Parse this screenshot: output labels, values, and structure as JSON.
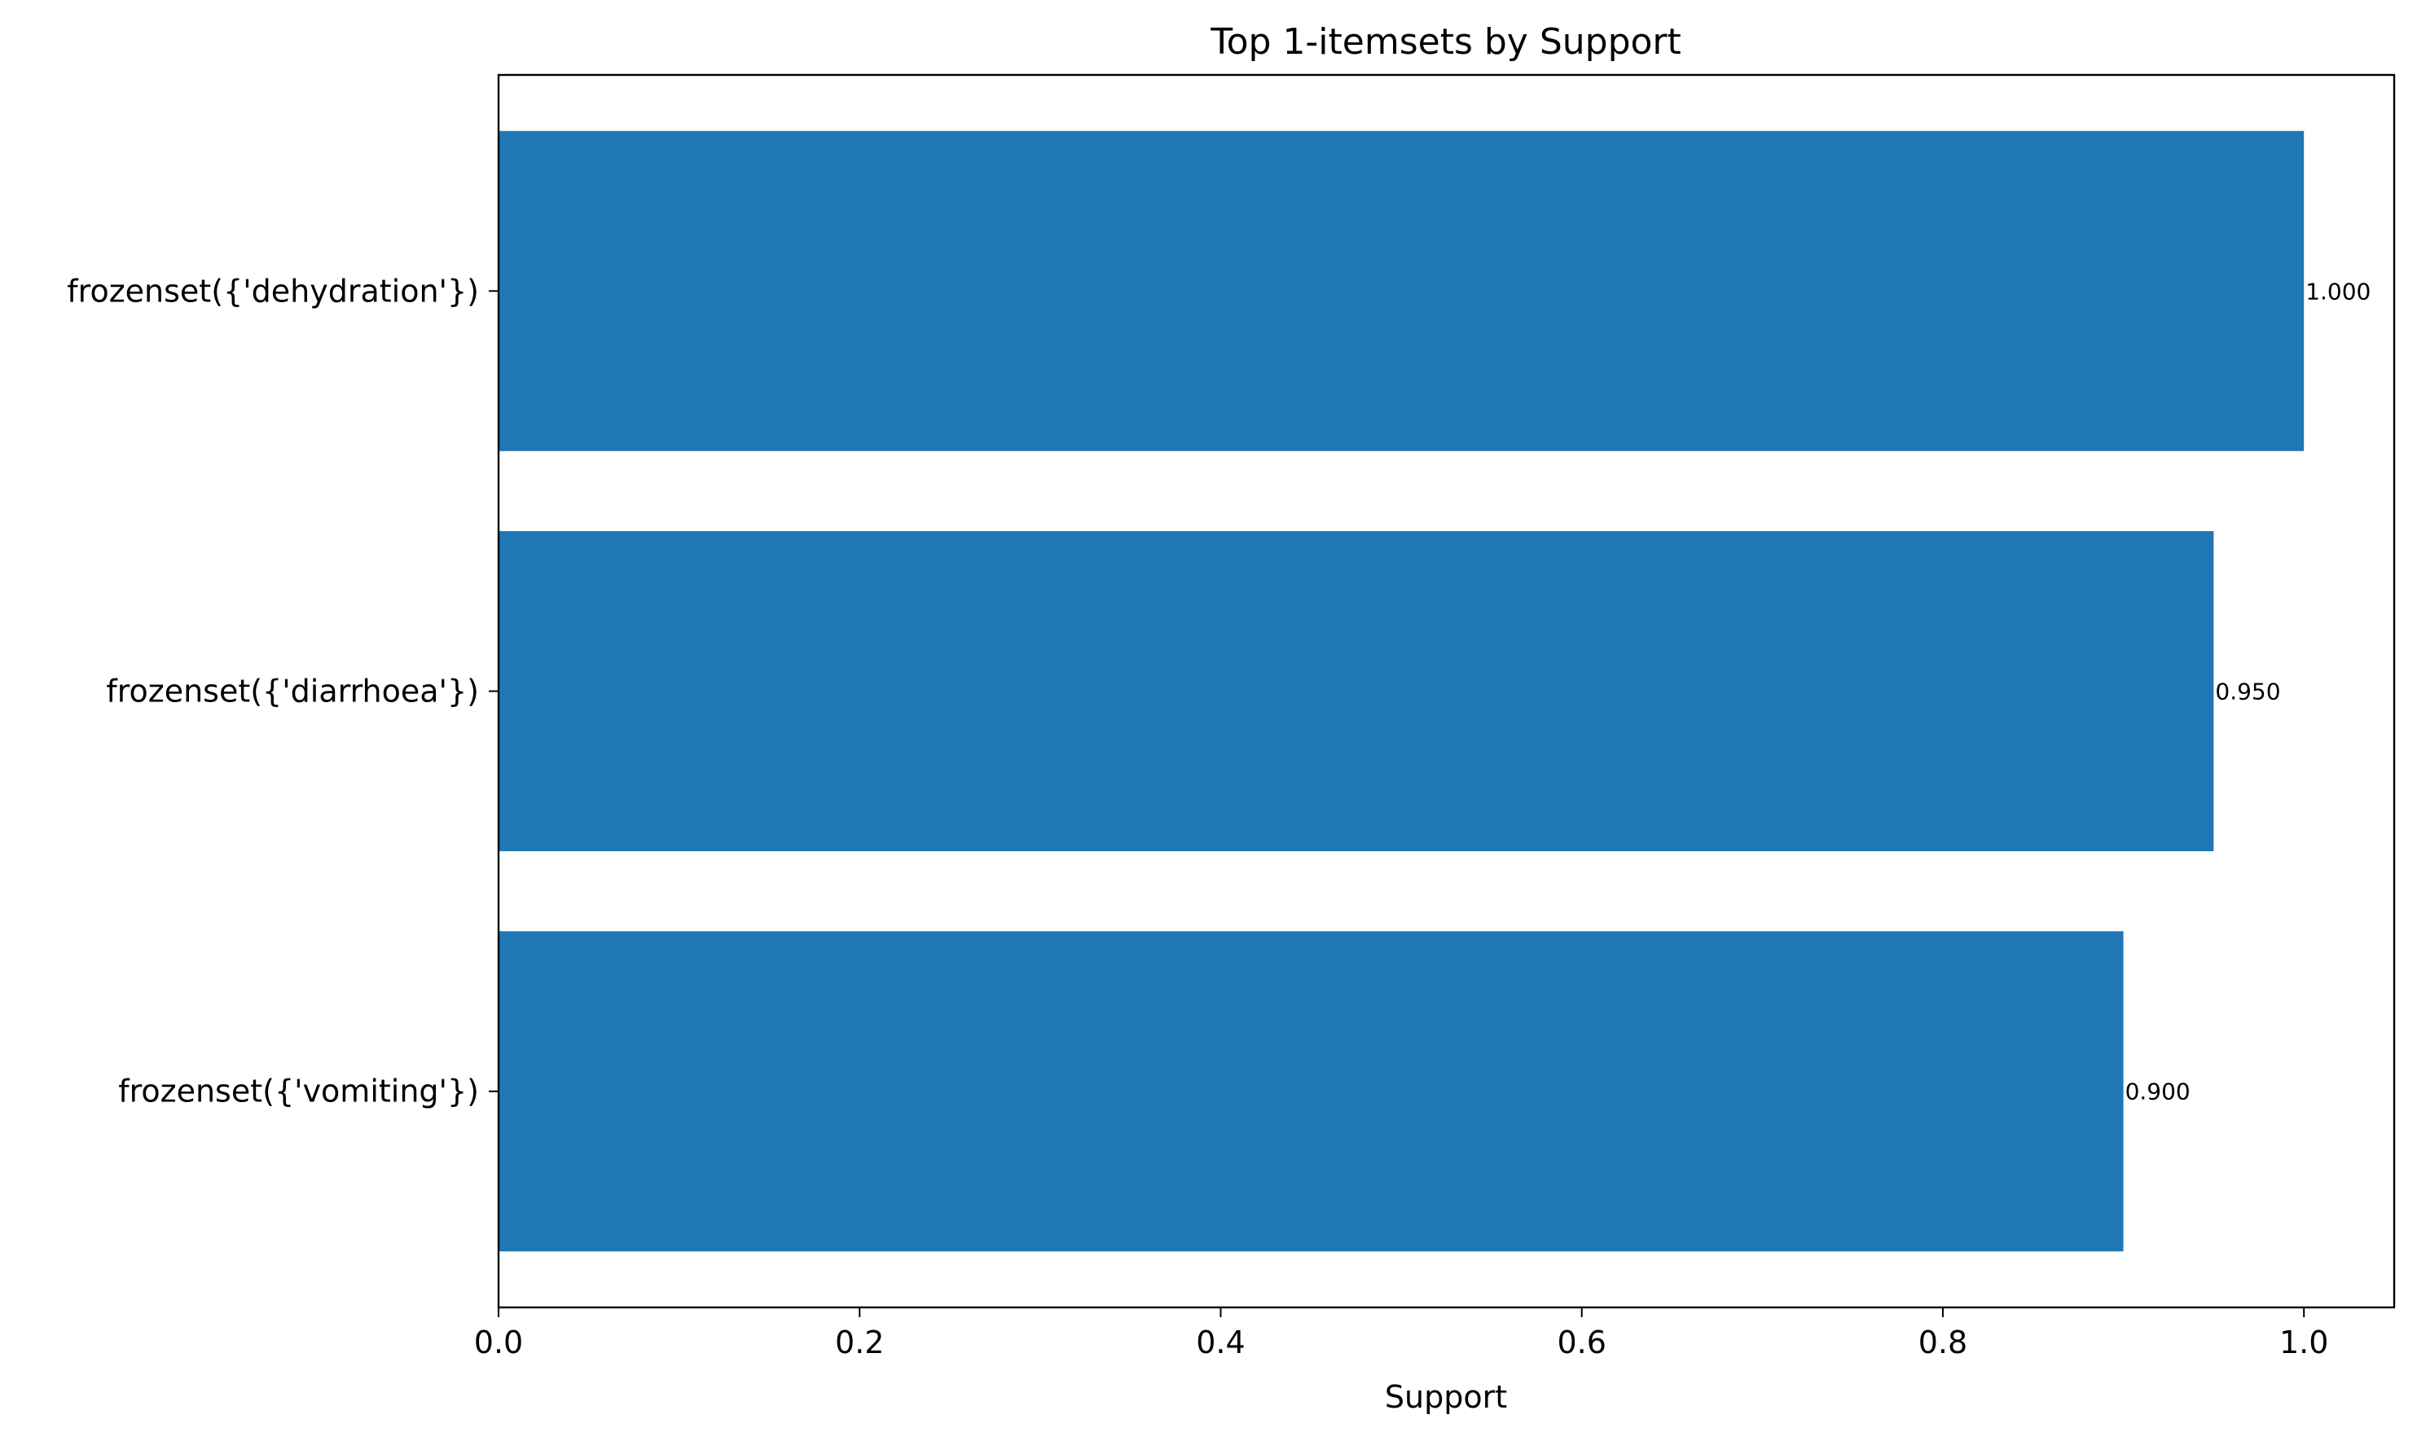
{
  "chart_data": {
    "type": "bar",
    "orientation": "horizontal",
    "title": "Top 1-itemsets by Support",
    "xlabel": "Support",
    "ylabel": "",
    "categories": [
      "frozenset({'dehydration'})",
      "frozenset({'diarrhoea'})",
      "frozenset({'vomiting'})"
    ],
    "values": [
      1.0,
      0.95,
      0.9
    ],
    "data_labels": [
      "1.000",
      "0.950",
      "0.900"
    ],
    "xlim": [
      0,
      1.05
    ],
    "xticks": [
      0.0,
      0.2,
      0.4,
      0.6,
      0.8,
      1.0
    ],
    "xtick_labels": [
      "0.0",
      "0.2",
      "0.4",
      "0.6",
      "0.8",
      "1.0"
    ],
    "bar_color": "#1f77b4",
    "grid": false,
    "legend": "none"
  }
}
